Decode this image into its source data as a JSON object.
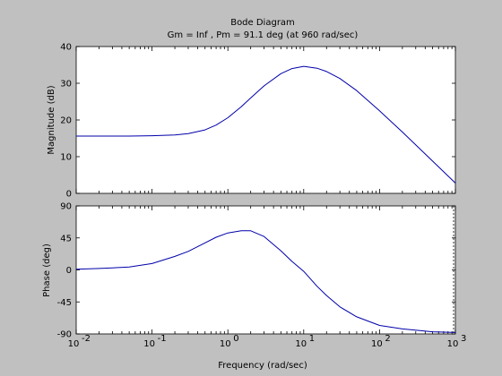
{
  "figure": {
    "background": "#c0c0c0",
    "axes_background": "#ffffff",
    "line_color": "#0000aa",
    "title": "Bode Diagram",
    "subtitle": "Gm = Inf ,  Pm = 91.1 deg (at 960 rad/sec)"
  },
  "chart_data": [
    {
      "type": "line",
      "title": "Bode Diagram",
      "subtitle": "Gm = Inf ,  Pm = 91.1 deg (at 960 rad/sec)",
      "xlabel": "",
      "ylabel": "Magnitude (dB)",
      "xscale": "log",
      "xlim": [
        0.01,
        1000
      ],
      "ylim": [
        0,
        40
      ],
      "yticks": [
        0,
        10,
        20,
        30,
        40
      ],
      "yticklabels": [
        "0",
        "10",
        "20",
        "30",
        "40"
      ],
      "grid": false,
      "series": [
        {
          "x": [
            0.01,
            0.02,
            0.05,
            0.1,
            0.2,
            0.3,
            0.5,
            0.7,
            1,
            1.5,
            2,
            3,
            5,
            7,
            10,
            15,
            20,
            30,
            50,
            100,
            200,
            500,
            1000
          ],
          "values": [
            15.6,
            15.6,
            15.6,
            15.7,
            15.9,
            16.3,
            17.3,
            18.6,
            20.6,
            23.6,
            26.0,
            29.3,
            32.6,
            34.0,
            34.6,
            34.1,
            33.2,
            31.3,
            28.0,
            22.5,
            16.7,
            8.8,
            2.8
          ]
        }
      ]
    },
    {
      "type": "line",
      "xlabel": "Frequency  (rad/sec)",
      "ylabel": "Phase (deg)",
      "xscale": "log",
      "xlim": [
        0.01,
        1000
      ],
      "ylim": [
        -90,
        90
      ],
      "yticks": [
        -90,
        -45,
        0,
        45,
        90
      ],
      "yticklabels": [
        "-90",
        "-45",
        "0",
        "45",
        "90"
      ],
      "xticklabels": [
        "10",
        "10",
        "10",
        "10",
        "10",
        "10"
      ],
      "xtickexponents": [
        "-2",
        "-1",
        "0",
        "1",
        "2",
        "3"
      ],
      "grid": false,
      "series": [
        {
          "x": [
            0.01,
            0.02,
            0.05,
            0.1,
            0.2,
            0.3,
            0.5,
            0.7,
            1,
            1.5,
            2,
            3,
            5,
            7,
            10,
            15,
            20,
            30,
            50,
            100,
            200,
            500,
            1000
          ],
          "values": [
            1,
            2,
            4,
            9,
            19,
            26,
            38,
            46,
            52,
            55,
            55,
            47,
            27,
            12,
            -2,
            -23,
            -36,
            -52,
            -66,
            -78,
            -83,
            -87,
            -88
          ]
        }
      ]
    }
  ]
}
